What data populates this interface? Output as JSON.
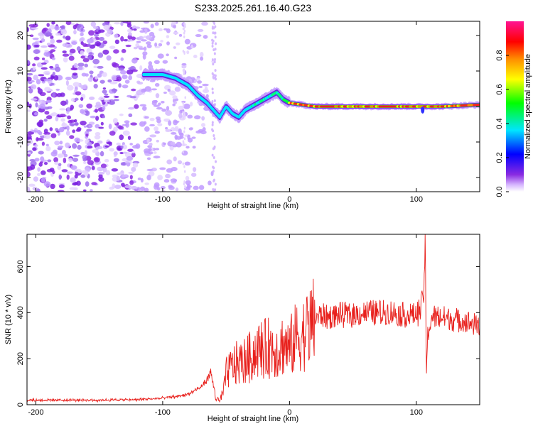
{
  "title": "S233.2025.261.16.40.G23",
  "chart_data": [
    {
      "type": "heatmap",
      "title": "S233.2025.261.16.40.G23",
      "xlabel": "Height of straight line (km)",
      "ylabel": "Frequency (Hz)",
      "xlim": [
        -207,
        150
      ],
      "ylim": [
        -24,
        24
      ],
      "x_ticks": [
        "-200",
        "-100",
        "0",
        "100"
      ],
      "x_tick_values": [
        -200,
        -100,
        0,
        100
      ],
      "y_ticks": [
        "-20",
        "-10",
        "0",
        "10",
        "20"
      ],
      "y_tick_values": [
        -20,
        -10,
        0,
        10,
        20
      ],
      "colorbar": {
        "label": "Normalized spectral amplitude",
        "range": [
          0,
          1
        ],
        "ticks": [
          "0.0",
          "0.2",
          "0.4",
          "0.6",
          "0.8"
        ],
        "tick_values": [
          0.0,
          0.2,
          0.4,
          0.6,
          0.8
        ],
        "colors": [
          "#ffffff",
          "#c8a0ff",
          "#8a2be2",
          "#0000ff",
          "#00e5ff",
          "#00ff00",
          "#ffff00",
          "#ff8c00",
          "#ff0000",
          "#ff1493"
        ]
      },
      "ridge": {
        "x": [
          -115,
          -100,
          -90,
          -80,
          -72,
          -65,
          -60,
          -55,
          -50,
          -45,
          -40,
          -35,
          -30,
          -25,
          -20,
          -15,
          -10,
          -5,
          0,
          10,
          20,
          40,
          60,
          80,
          100,
          120,
          150
        ],
        "y": [
          9,
          9,
          8,
          6,
          3,
          1,
          -1,
          -3,
          0,
          -2,
          -3,
          -1,
          0,
          1,
          2,
          3,
          4,
          2,
          1,
          0.5,
          0,
          0,
          0,
          0,
          0,
          0,
          0.5
        ]
      },
      "noise_region_x": [
        -207,
        -60
      ]
    },
    {
      "type": "line",
      "xlabel": "Height of straight line (km)",
      "ylabel": "SNR (10 * v/v)",
      "xlim": [
        -207,
        150
      ],
      "ylim": [
        0,
        740
      ],
      "x_ticks": [
        "-200",
        "-100",
        "0",
        "100"
      ],
      "x_tick_values": [
        -200,
        -100,
        0,
        100
      ],
      "y_ticks": [
        "0",
        "200",
        "400",
        "600"
      ],
      "y_tick_values": [
        0,
        200,
        400,
        600
      ],
      "line_color": "#e8201c",
      "series": [
        {
          "x": [
            -207,
            -180,
            -150,
            -120,
            -100,
            -90,
            -80,
            -75,
            -70,
            -65,
            -62,
            -60,
            -58,
            -55,
            -52,
            -50,
            -45,
            -40,
            -35,
            -30,
            -25,
            -20,
            -15,
            -10,
            -5,
            0,
            5,
            10,
            15,
            20,
            25,
            30,
            40,
            50,
            60,
            70,
            80,
            90,
            100,
            104,
            106,
            107,
            108,
            109,
            112,
            120,
            130,
            140,
            150
          ],
          "y": [
            20,
            20,
            20,
            22,
            28,
            35,
            45,
            60,
            75,
            110,
            140,
            80,
            30,
            15,
            60,
            130,
            170,
            180,
            190,
            210,
            240,
            240,
            250,
            240,
            260,
            240,
            290,
            300,
            330,
            370,
            390,
            380,
            390,
            390,
            400,
            400,
            400,
            390,
            390,
            420,
            500,
            740,
            130,
            300,
            380,
            380,
            370,
            360,
            340
          ]
        }
      ]
    }
  ]
}
